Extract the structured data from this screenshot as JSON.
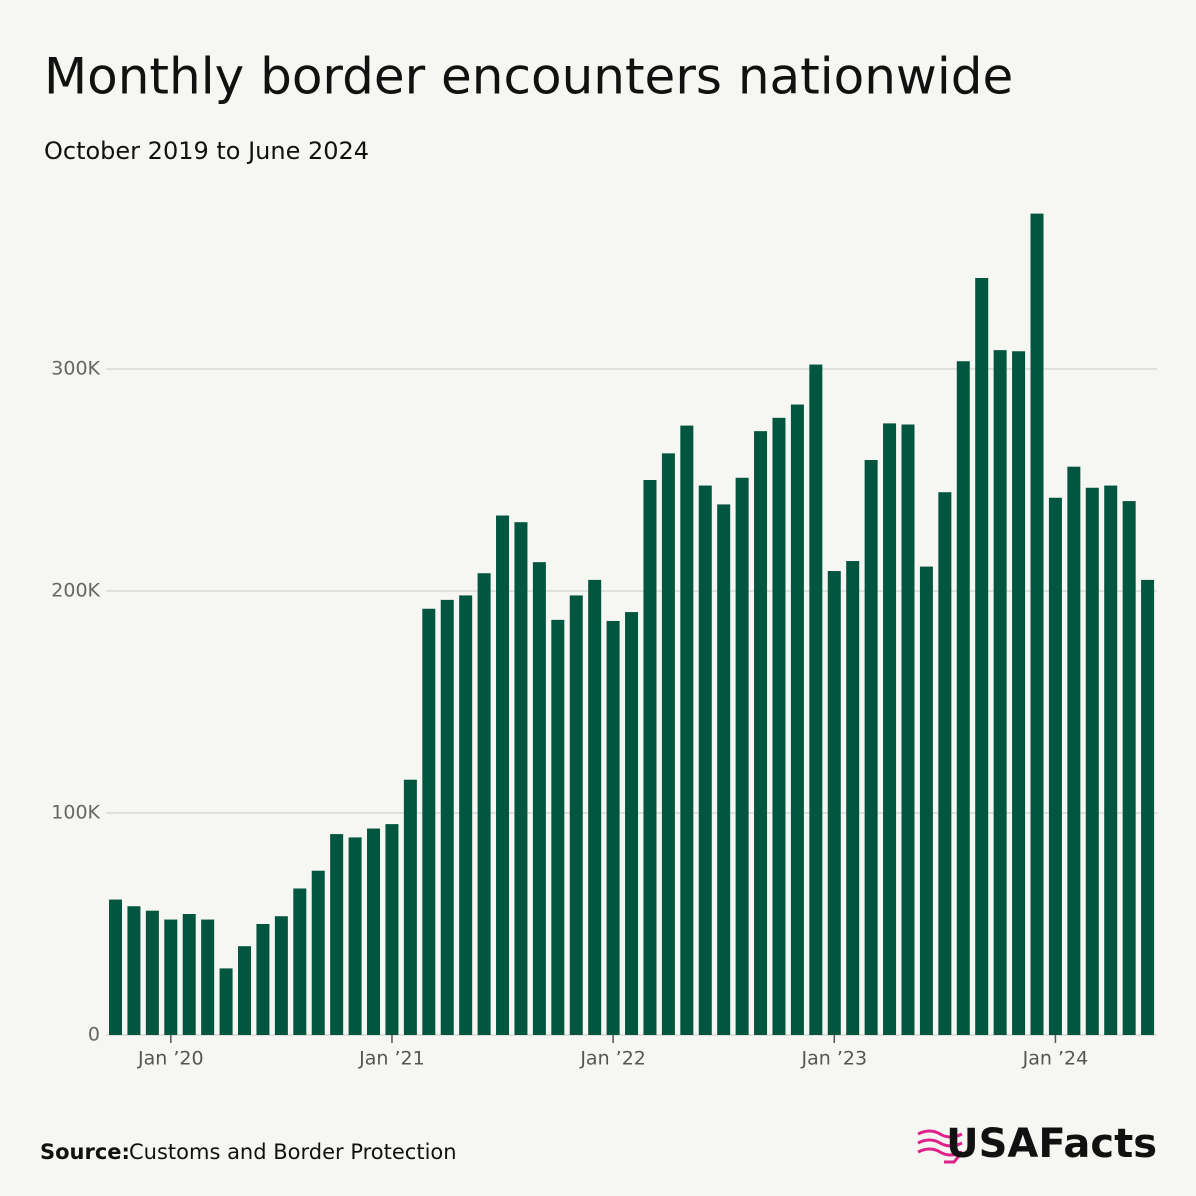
{
  "chart_data": {
    "type": "bar",
    "title": "Monthly border encounters nationwide",
    "subtitle": "October 2019 to June 2024",
    "source_label": "Source:",
    "source": "Customs and Border Protection",
    "logo": "USAFacts",
    "color": "#02553f",
    "grid": true,
    "categories": [
      null,
      null,
      null,
      "Jan ’20",
      null,
      null,
      null,
      null,
      null,
      null,
      null,
      null,
      null,
      null,
      null,
      "Jan ’21",
      null,
      null,
      null,
      null,
      null,
      null,
      null,
      null,
      null,
      null,
      null,
      "Jan ’22",
      null,
      null,
      null,
      null,
      null,
      null,
      null,
      null,
      null,
      null,
      null,
      "Jan ’23",
      null,
      null,
      null,
      null,
      null,
      null,
      null,
      null,
      null,
      null,
      null,
      "Jan ’24",
      null,
      null,
      null,
      null,
      null
    ],
    "values": [
      61000,
      58000,
      56000,
      52000,
      54500,
      52000,
      30000,
      40000,
      50000,
      53500,
      66000,
      74000,
      90500,
      89000,
      93000,
      95000,
      115000,
      192000,
      196000,
      198000,
      208000,
      234000,
      231000,
      213000,
      187000,
      198000,
      205000,
      186500,
      190500,
      250000,
      262000,
      274500,
      247500,
      239000,
      251000,
      272000,
      278000,
      284000,
      302000,
      209000,
      213500,
      259000,
      275500,
      275000,
      211000,
      244500,
      303500,
      341000,
      308500,
      308000,
      370000,
      242000,
      256000,
      246500,
      247500,
      240500,
      205000
    ],
    "ylim": [
      0,
      375000
    ],
    "yticks": [
      0,
      {
        "value": 100000,
        "label": "100K"
      },
      {
        "value": 200000,
        "label": "200K"
      },
      {
        "value": 300000,
        "label": "300K"
      }
    ]
  }
}
